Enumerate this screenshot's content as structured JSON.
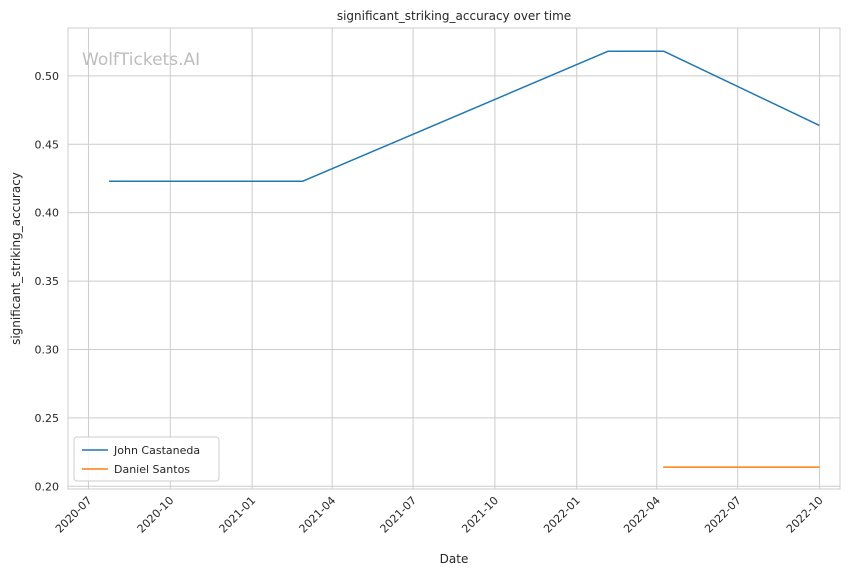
{
  "chart_data": {
    "type": "line",
    "title": "significant_striking_accuracy over time",
    "xlabel": "Date",
    "ylabel": "significant_striking_accuracy",
    "watermark": "WolfTickets.AI",
    "x_ticks": [
      "2020-07",
      "2020-10",
      "2021-01",
      "2021-04",
      "2021-07",
      "2021-10",
      "2022-01",
      "2022-04",
      "2022-07",
      "2022-10"
    ],
    "y_ticks": [
      "0.20",
      "0.25",
      "0.30",
      "0.35",
      "0.40",
      "0.45",
      "0.50"
    ],
    "xlim": [
      "2020-06-08",
      "2022-10-24"
    ],
    "ylim": [
      0.198,
      0.535
    ],
    "grid": true,
    "legend_position": "lower-left",
    "series": [
      {
        "name": "John Castaneda",
        "color": "#1f77b4",
        "points": [
          {
            "x": "2020-07-25",
            "y": 0.423
          },
          {
            "x": "2021-02-27",
            "y": 0.423
          },
          {
            "x": "2022-02-05",
            "y": 0.518
          },
          {
            "x": "2022-04-09",
            "y": 0.518
          },
          {
            "x": "2022-09-30",
            "y": 0.464
          }
        ]
      },
      {
        "name": "Daniel Santos",
        "color": "#ff7f0e",
        "points": [
          {
            "x": "2022-04-09",
            "y": 0.214
          },
          {
            "x": "2022-09-30",
            "y": 0.214
          }
        ]
      }
    ]
  }
}
